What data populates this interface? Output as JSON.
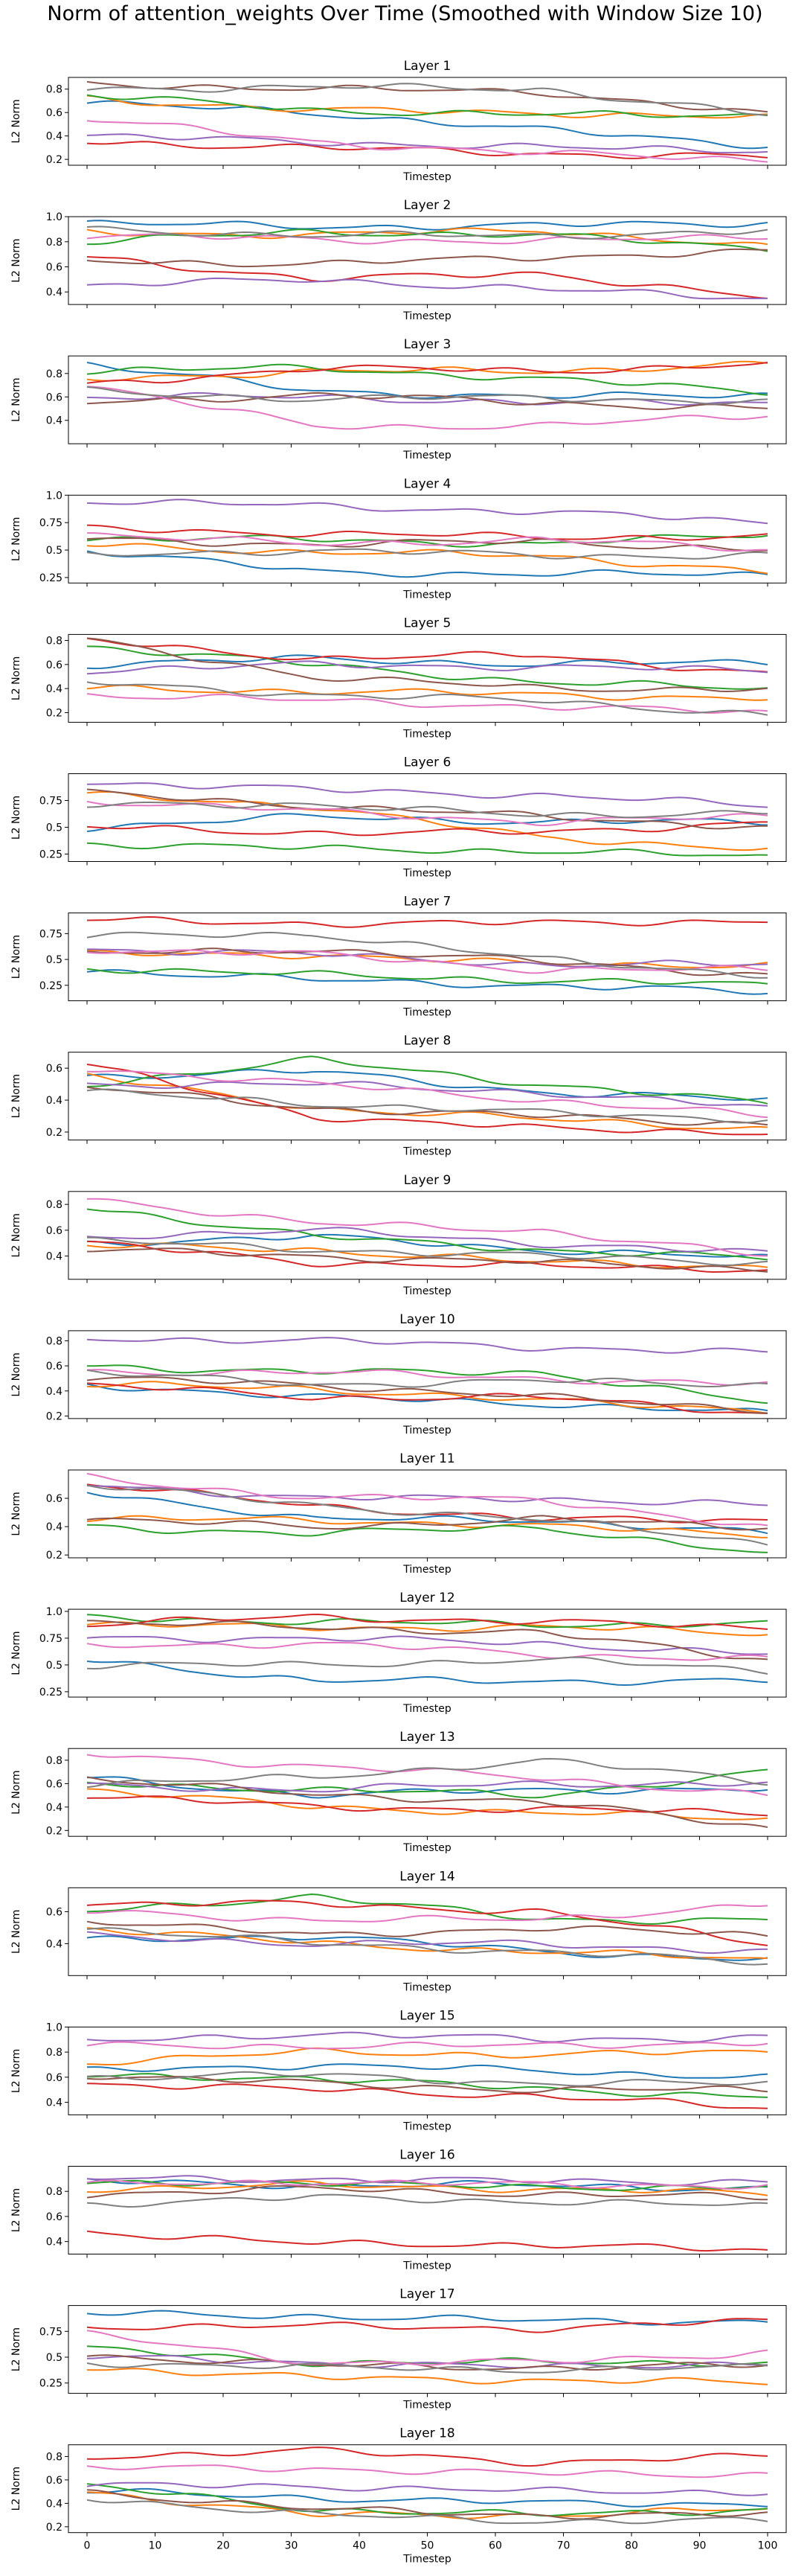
{
  "chart_data": {
    "type": "line",
    "title": "Norm of attention_weights Over Time (Smoothed with Window Size 10)",
    "x_range": [
      0,
      100
    ],
    "x_ticks": [
      0,
      10,
      20,
      30,
      40,
      50,
      60,
      70,
      80,
      90,
      100
    ],
    "xlabel": "Timestep",
    "ylabel": "L2 Norm",
    "grid": false,
    "legend": "none",
    "series_colors": [
      "#1f77b4",
      "#ff7f0e",
      "#2ca02c",
      "#d62728",
      "#9467bd",
      "#8c564b",
      "#e377c2",
      "#7f7f7f"
    ],
    "panels": [
      {
        "title": "Layer 1",
        "ylim": [
          0.15,
          0.9
        ],
        "yticks": [
          0.2,
          0.4,
          0.6,
          0.8
        ],
        "series_levels": [
          [
            0.68,
            0.6,
            0.45,
            0.32
          ],
          [
            0.72,
            0.62,
            0.6,
            0.55
          ],
          [
            0.75,
            0.62,
            0.58,
            0.58
          ],
          [
            0.35,
            0.3,
            0.25,
            0.22
          ],
          [
            0.4,
            0.35,
            0.3,
            0.28
          ],
          [
            0.85,
            0.8,
            0.78,
            0.58
          ],
          [
            0.55,
            0.35,
            0.25,
            0.2
          ],
          [
            0.8,
            0.82,
            0.8,
            0.58
          ]
        ]
      },
      {
        "title": "Layer 2",
        "ylim": [
          0.3,
          1.0
        ],
        "yticks": [
          0.4,
          0.6,
          0.8,
          1.0
        ],
        "series_levels": [
          [
            0.95,
            0.92,
            0.93,
            0.95
          ],
          [
            0.88,
            0.85,
            0.9,
            0.75
          ],
          [
            0.8,
            0.88,
            0.85,
            0.75
          ],
          [
            0.68,
            0.5,
            0.55,
            0.35
          ],
          [
            0.45,
            0.5,
            0.42,
            0.35
          ],
          [
            0.65,
            0.62,
            0.68,
            0.72
          ],
          [
            0.85,
            0.82,
            0.8,
            0.85
          ],
          [
            0.9,
            0.85,
            0.85,
            0.88
          ]
        ]
      },
      {
        "title": "Layer 3",
        "ylim": [
          0.2,
          0.95
        ],
        "yticks": [
          0.4,
          0.6,
          0.8
        ],
        "series_levels": [
          [
            0.88,
            0.65,
            0.6,
            0.62
          ],
          [
            0.75,
            0.82,
            0.82,
            0.88
          ],
          [
            0.82,
            0.85,
            0.75,
            0.65
          ],
          [
            0.7,
            0.85,
            0.82,
            0.88
          ],
          [
            0.6,
            0.6,
            0.55,
            0.55
          ],
          [
            0.55,
            0.62,
            0.55,
            0.5
          ],
          [
            0.7,
            0.35,
            0.35,
            0.45
          ],
          [
            0.65,
            0.58,
            0.6,
            0.55
          ]
        ]
      },
      {
        "title": "Layer 4",
        "ylim": [
          0.2,
          1.0
        ],
        "yticks": [
          0.25,
          0.5,
          0.75,
          1.0
        ],
        "series_levels": [
          [
            0.5,
            0.3,
            0.28,
            0.28
          ],
          [
            0.55,
            0.48,
            0.45,
            0.3
          ],
          [
            0.6,
            0.6,
            0.55,
            0.65
          ],
          [
            0.7,
            0.65,
            0.62,
            0.62
          ],
          [
            0.95,
            0.9,
            0.85,
            0.75
          ],
          [
            0.6,
            0.55,
            0.58,
            0.5
          ],
          [
            0.65,
            0.55,
            0.6,
            0.5
          ],
          [
            0.45,
            0.5,
            0.45,
            0.45
          ]
        ]
      },
      {
        "title": "Layer 5",
        "ylim": [
          0.12,
          0.85
        ],
        "yticks": [
          0.2,
          0.4,
          0.6,
          0.8
        ],
        "series_levels": [
          [
            0.6,
            0.65,
            0.6,
            0.62
          ],
          [
            0.4,
            0.38,
            0.35,
            0.32
          ],
          [
            0.75,
            0.6,
            0.45,
            0.4
          ],
          [
            0.8,
            0.65,
            0.68,
            0.52
          ],
          [
            0.55,
            0.6,
            0.58,
            0.55
          ],
          [
            0.8,
            0.5,
            0.4,
            0.4
          ],
          [
            0.35,
            0.3,
            0.25,
            0.2
          ],
          [
            0.45,
            0.35,
            0.3,
            0.18
          ]
        ]
      },
      {
        "title": "Layer 6",
        "ylim": [
          0.18,
          1.0
        ],
        "yticks": [
          0.25,
          0.5,
          0.75
        ],
        "series_levels": [
          [
            0.5,
            0.6,
            0.55,
            0.55
          ],
          [
            0.8,
            0.7,
            0.4,
            0.3
          ],
          [
            0.35,
            0.3,
            0.28,
            0.22
          ],
          [
            0.5,
            0.45,
            0.45,
            0.55
          ],
          [
            0.92,
            0.85,
            0.8,
            0.7
          ],
          [
            0.82,
            0.7,
            0.6,
            0.5
          ],
          [
            0.75,
            0.65,
            0.55,
            0.6
          ],
          [
            0.7,
            0.72,
            0.6,
            0.65
          ]
        ]
      },
      {
        "title": "Layer 7",
        "ylim": [
          0.1,
          0.95
        ],
        "yticks": [
          0.25,
          0.5,
          0.75
        ],
        "series_levels": [
          [
            0.4,
            0.3,
            0.25,
            0.18
          ],
          [
            0.55,
            0.55,
            0.45,
            0.45
          ],
          [
            0.42,
            0.35,
            0.3,
            0.25
          ],
          [
            0.88,
            0.85,
            0.85,
            0.88
          ],
          [
            0.6,
            0.55,
            0.45,
            0.45
          ],
          [
            0.55,
            0.6,
            0.48,
            0.35
          ],
          [
            0.6,
            0.55,
            0.4,
            0.4
          ],
          [
            0.72,
            0.75,
            0.5,
            0.35
          ]
        ]
      },
      {
        "title": "Layer 8",
        "ylim": [
          0.15,
          0.7
        ],
        "yticks": [
          0.2,
          0.4,
          0.6
        ],
        "series_levels": [
          [
            0.55,
            0.58,
            0.45,
            0.4
          ],
          [
            0.55,
            0.35,
            0.28,
            0.22
          ],
          [
            0.5,
            0.65,
            0.5,
            0.38
          ],
          [
            0.62,
            0.3,
            0.22,
            0.2
          ],
          [
            0.5,
            0.5,
            0.45,
            0.35
          ],
          [
            0.48,
            0.35,
            0.3,
            0.25
          ],
          [
            0.6,
            0.5,
            0.4,
            0.3
          ],
          [
            0.45,
            0.38,
            0.32,
            0.28
          ]
        ]
      },
      {
        "title": "Layer 9",
        "ylim": [
          0.22,
          0.9
        ],
        "yticks": [
          0.4,
          0.6,
          0.8
        ],
        "series_levels": [
          [
            0.5,
            0.55,
            0.45,
            0.38
          ],
          [
            0.48,
            0.45,
            0.35,
            0.32
          ],
          [
            0.78,
            0.55,
            0.45,
            0.38
          ],
          [
            0.5,
            0.35,
            0.32,
            0.3
          ],
          [
            0.55,
            0.6,
            0.5,
            0.42
          ],
          [
            0.45,
            0.4,
            0.35,
            0.3
          ],
          [
            0.85,
            0.65,
            0.6,
            0.4
          ],
          [
            0.52,
            0.45,
            0.4,
            0.35
          ]
        ]
      },
      {
        "title": "Layer 10",
        "ylim": [
          0.18,
          0.88
        ],
        "yticks": [
          0.2,
          0.4,
          0.6,
          0.8
        ],
        "series_levels": [
          [
            0.45,
            0.35,
            0.3,
            0.22
          ],
          [
            0.45,
            0.42,
            0.32,
            0.25
          ],
          [
            0.6,
            0.55,
            0.55,
            0.3
          ],
          [
            0.45,
            0.35,
            0.35,
            0.22
          ],
          [
            0.82,
            0.8,
            0.75,
            0.7
          ],
          [
            0.5,
            0.45,
            0.35,
            0.25
          ],
          [
            0.55,
            0.55,
            0.5,
            0.45
          ],
          [
            0.55,
            0.45,
            0.48,
            0.45
          ]
        ]
      },
      {
        "title": "Layer 11",
        "ylim": [
          0.18,
          0.8
        ],
        "yticks": [
          0.2,
          0.4,
          0.6
        ],
        "series_levels": [
          [
            0.65,
            0.45,
            0.45,
            0.35
          ],
          [
            0.45,
            0.45,
            0.4,
            0.35
          ],
          [
            0.4,
            0.35,
            0.4,
            0.2
          ],
          [
            0.7,
            0.55,
            0.45,
            0.45
          ],
          [
            0.7,
            0.6,
            0.6,
            0.55
          ],
          [
            0.45,
            0.4,
            0.45,
            0.4
          ],
          [
            0.75,
            0.6,
            0.6,
            0.38
          ],
          [
            0.7,
            0.55,
            0.45,
            0.28
          ]
        ]
      },
      {
        "title": "Layer 12",
        "ylim": [
          0.2,
          1.02
        ],
        "yticks": [
          0.25,
          0.5,
          0.75,
          1.0
        ],
        "series_levels": [
          [
            0.55,
            0.35,
            0.35,
            0.35
          ],
          [
            0.88,
            0.85,
            0.85,
            0.8
          ],
          [
            0.95,
            0.9,
            0.88,
            0.88
          ],
          [
            0.88,
            0.95,
            0.9,
            0.85
          ],
          [
            0.75,
            0.75,
            0.7,
            0.6
          ],
          [
            0.9,
            0.85,
            0.8,
            0.55
          ],
          [
            0.68,
            0.7,
            0.6,
            0.55
          ],
          [
            0.5,
            0.5,
            0.55,
            0.45
          ]
        ]
      },
      {
        "title": "Layer 13",
        "ylim": [
          0.15,
          0.9
        ],
        "yticks": [
          0.2,
          0.4,
          0.6,
          0.8
        ],
        "series_levels": [
          [
            0.65,
            0.5,
            0.55,
            0.55
          ],
          [
            0.55,
            0.4,
            0.35,
            0.3
          ],
          [
            0.6,
            0.55,
            0.5,
            0.7
          ],
          [
            0.5,
            0.4,
            0.38,
            0.35
          ],
          [
            0.58,
            0.55,
            0.6,
            0.6
          ],
          [
            0.65,
            0.5,
            0.45,
            0.22
          ],
          [
            0.85,
            0.75,
            0.65,
            0.5
          ],
          [
            0.6,
            0.65,
            0.8,
            0.62
          ]
        ]
      },
      {
        "title": "Layer 14",
        "ylim": [
          0.2,
          0.75
        ],
        "yticks": [
          0.4,
          0.6
        ],
        "series_levels": [
          [
            0.42,
            0.45,
            0.35,
            0.3
          ],
          [
            0.5,
            0.4,
            0.35,
            0.3
          ],
          [
            0.6,
            0.7,
            0.55,
            0.55
          ],
          [
            0.65,
            0.65,
            0.6,
            0.4
          ],
          [
            0.45,
            0.4,
            0.4,
            0.35
          ],
          [
            0.55,
            0.45,
            0.5,
            0.45
          ],
          [
            0.6,
            0.55,
            0.55,
            0.65
          ],
          [
            0.5,
            0.4,
            0.35,
            0.28
          ]
        ]
      },
      {
        "title": "Layer 15",
        "ylim": [
          0.3,
          1.0
        ],
        "yticks": [
          0.4,
          0.6,
          0.8,
          1.0
        ],
        "series_levels": [
          [
            0.65,
            0.7,
            0.65,
            0.6
          ],
          [
            0.72,
            0.8,
            0.78,
            0.8
          ],
          [
            0.6,
            0.6,
            0.5,
            0.45
          ],
          [
            0.55,
            0.5,
            0.45,
            0.35
          ],
          [
            0.88,
            0.95,
            0.9,
            0.92
          ],
          [
            0.62,
            0.55,
            0.5,
            0.5
          ],
          [
            0.85,
            0.85,
            0.85,
            0.88
          ],
          [
            0.6,
            0.62,
            0.55,
            0.55
          ]
        ]
      },
      {
        "title": "Layer 16",
        "ylim": [
          0.3,
          1.0
        ],
        "yticks": [
          0.4,
          0.6,
          0.8
        ],
        "series_levels": [
          [
            0.88,
            0.85,
            0.85,
            0.82
          ],
          [
            0.82,
            0.85,
            0.82,
            0.78
          ],
          [
            0.85,
            0.88,
            0.82,
            0.85
          ],
          [
            0.48,
            0.38,
            0.38,
            0.32
          ],
          [
            0.9,
            0.9,
            0.88,
            0.88
          ],
          [
            0.78,
            0.82,
            0.78,
            0.75
          ],
          [
            0.85,
            0.88,
            0.85,
            0.85
          ],
          [
            0.7,
            0.75,
            0.72,
            0.68
          ]
        ]
      },
      {
        "title": "Layer 17",
        "ylim": [
          0.15,
          1.0
        ],
        "yticks": [
          0.25,
          0.5,
          0.75
        ],
        "series_levels": [
          [
            0.92,
            0.9,
            0.85,
            0.85
          ],
          [
            0.4,
            0.3,
            0.28,
            0.25
          ],
          [
            0.58,
            0.45,
            0.45,
            0.45
          ],
          [
            0.8,
            0.8,
            0.78,
            0.85
          ],
          [
            0.5,
            0.45,
            0.4,
            0.45
          ],
          [
            0.52,
            0.42,
            0.4,
            0.42
          ],
          [
            0.72,
            0.45,
            0.45,
            0.55
          ],
          [
            0.45,
            0.4,
            0.38,
            0.4
          ]
        ]
      },
      {
        "title": "Layer 18",
        "ylim": [
          0.15,
          0.9
        ],
        "yticks": [
          0.2,
          0.4,
          0.6,
          0.8
        ],
        "series_levels": [
          [
            0.5,
            0.45,
            0.4,
            0.4
          ],
          [
            0.5,
            0.3,
            0.3,
            0.35
          ],
          [
            0.55,
            0.35,
            0.3,
            0.35
          ],
          [
            0.8,
            0.85,
            0.75,
            0.8
          ],
          [
            0.55,
            0.55,
            0.5,
            0.5
          ],
          [
            0.5,
            0.35,
            0.3,
            0.3
          ],
          [
            0.7,
            0.7,
            0.65,
            0.65
          ],
          [
            0.45,
            0.3,
            0.25,
            0.25
          ]
        ]
      }
    ]
  }
}
